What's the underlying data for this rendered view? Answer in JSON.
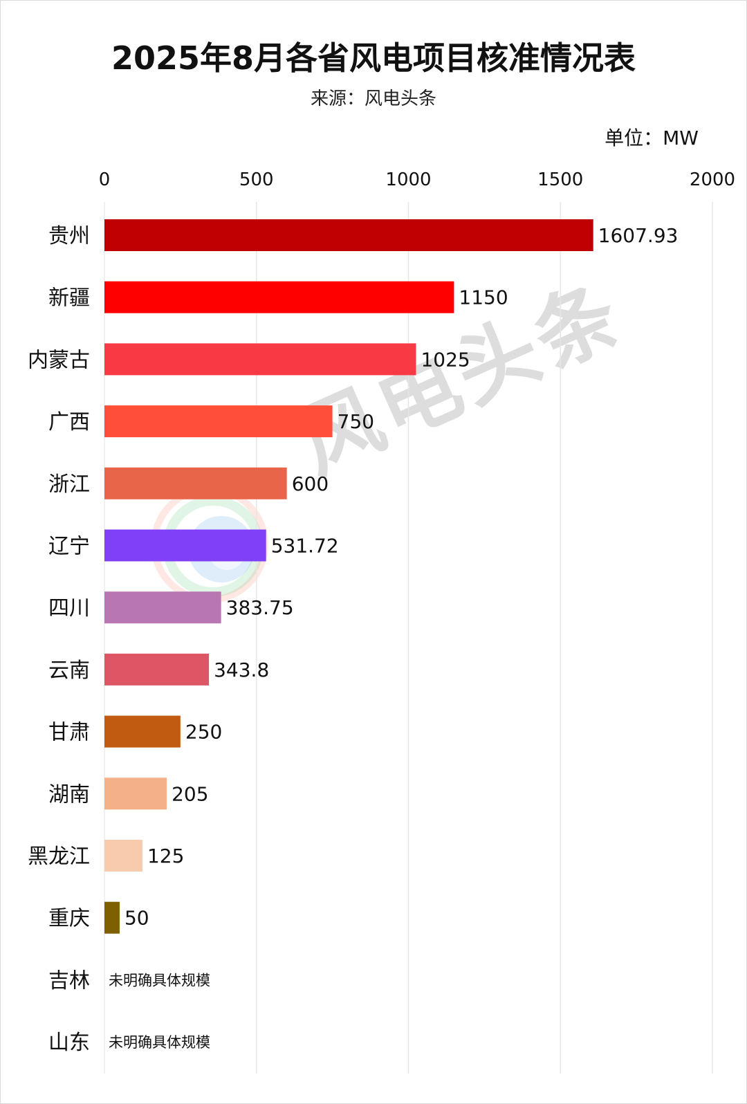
{
  "title": "2025年8月各省风电项目核准情况表",
  "subtitle": "来源：风电头条",
  "unit": "单位：MW",
  "watermark": "风电头条",
  "chart_data": {
    "type": "bar",
    "orientation": "horizontal",
    "xlim": [
      0,
      2000
    ],
    "xticks": [
      0,
      500,
      1000,
      1500,
      2000
    ],
    "grid": true,
    "categories": [
      "贵州",
      "新疆",
      "内蒙古",
      "广西",
      "浙江",
      "辽宁",
      "四川",
      "云南",
      "甘肃",
      "湖南",
      "黑龙江",
      "重庆",
      "吉林",
      "山东"
    ],
    "values": [
      1607.93,
      1150,
      1025,
      750,
      600,
      531.72,
      383.75,
      343.8,
      250,
      205,
      125,
      50,
      null,
      null
    ],
    "value_labels": [
      "1607.93",
      "1150",
      "1025",
      "750",
      "600",
      "531.72",
      "383.75",
      "343.8",
      "250",
      "205",
      "125",
      "50",
      "未明确具体规模",
      "未明确具体规模"
    ],
    "colors": [
      "#C00000",
      "#FF0000",
      "#F83A44",
      "#FF4F38",
      "#E9654A",
      "#8040F8",
      "#B877B2",
      "#DE5565",
      "#C25B12",
      "#F4B187",
      "#F8CBAD",
      "#7F6000",
      "#000000",
      "#000000"
    ]
  }
}
